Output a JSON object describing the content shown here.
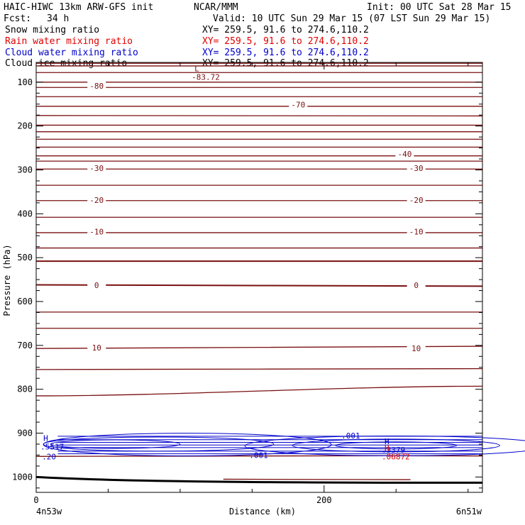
{
  "header": {
    "model": "HAIC-HIWC 13km ARW-GFS init",
    "org": "NCAR/MMM",
    "init": "Init: 00 UTC Sat 28 Mar 15",
    "fcst_label": "Fcst:",
    "fcst_value": "34 h",
    "valid": "Valid: 10 UTC Sun 29 Mar 15 (07 LST Sun 29 Mar 15)"
  },
  "legend": [
    {
      "name": "Snow mixing ratio",
      "xy": "XY= 259.5, 91.6 to 274.6,110.2",
      "color": "#000000"
    },
    {
      "name": "Rain water mixing ratio",
      "xy": "XY= 259.5, 91.6 to 274.6,110.2",
      "color": "#e00000"
    },
    {
      "name": "Cloud water mixing ratio",
      "xy": "XY= 259.5, 91.6 to 274.6,110.2",
      "color": "#0000cc"
    },
    {
      "name": "Cloud ice mixing ratio",
      "xy": "XY= 259.5, 91.6 to 274.6,110.2",
      "color": "#000000"
    }
  ],
  "chart_data": {
    "type": "contour cross-section",
    "xlabel": "Distance (km)",
    "ylabel": "Pressure (hPa)",
    "x_ticks": [
      0,
      200
    ],
    "y_ticks": [
      100,
      200,
      300,
      400,
      500,
      600,
      700,
      800,
      900,
      1000
    ],
    "xlim": [
      0,
      310
    ],
    "ylim": [
      1035,
      55
    ],
    "endpoints": {
      "left": "4n53w",
      "right": "6n51w"
    },
    "colors": {
      "temperature": "#7a1010",
      "cloud_water": "#0000cc",
      "rain": "#e00000",
      "ground": "#000000"
    },
    "temperature_contours": [
      {
        "value": -85,
        "p_left": 57,
        "p_right": 57
      },
      {
        "value": -85,
        "p_left": 63,
        "p_right": 63
      },
      {
        "value": -85,
        "p_left": 78,
        "p_right": 78
      },
      {
        "value": -80,
        "p_left": 100,
        "p_right": 100
      },
      {
        "value": -80,
        "p_left": 112,
        "p_right": 112
      },
      {
        "value": -75,
        "p_left": 133,
        "p_right": 133
      },
      {
        "value": -70,
        "p_left": 155,
        "p_right": 155
      },
      {
        "value": -65,
        "p_left": 176,
        "p_right": 177
      },
      {
        "value": -60,
        "p_left": 198,
        "p_right": 198
      },
      {
        "value": -55,
        "p_left": 213,
        "p_right": 213
      },
      {
        "value": -50,
        "p_left": 230,
        "p_right": 230
      },
      {
        "value": -45,
        "p_left": 248,
        "p_right": 248
      },
      {
        "value": -40,
        "p_left": 268,
        "p_right": 268
      },
      {
        "value": -35,
        "p_left": 280,
        "p_right": 280
      },
      {
        "value": -30,
        "p_left": 298,
        "p_right": 298
      },
      {
        "value": -25,
        "p_left": 335,
        "p_right": 335
      },
      {
        "value": -20,
        "p_left": 370,
        "p_right": 370
      },
      {
        "value": -15,
        "p_left": 408,
        "p_right": 408
      },
      {
        "value": -10,
        "p_left": 443,
        "p_right": 443
      },
      {
        "value": -5,
        "p_left": 478,
        "p_right": 478
      },
      {
        "value": 0,
        "p_left": 508,
        "p_right": 508
      },
      {
        "value": 0,
        "p_left": 562,
        "p_right": 565
      },
      {
        "value": 5,
        "p_left": 624,
        "p_right": 624
      },
      {
        "value": 10,
        "p_left": 661,
        "p_right": 661
      },
      {
        "value": 10,
        "p_left": 707,
        "p_right": 702
      },
      {
        "value": 15,
        "p_left": 755,
        "p_right": 753
      },
      {
        "value": 20,
        "p_left": 815,
        "p_right": 793
      }
    ],
    "temperature_labels": [
      {
        "text": "-80",
        "x": 42,
        "p": 108
      },
      {
        "text": "-70",
        "x": 182,
        "p": 151
      },
      {
        "text": "-40",
        "x": 256,
        "p": 264
      },
      {
        "text": "-30",
        "x": 42,
        "p": 296
      },
      {
        "text": "-30",
        "x": 264,
        "p": 296
      },
      {
        "text": "-20",
        "x": 42,
        "p": 369
      },
      {
        "text": "-20",
        "x": 264,
        "p": 369
      },
      {
        "text": "-10",
        "x": 42,
        "p": 441
      },
      {
        "text": "-10",
        "x": 264,
        "p": 441
      },
      {
        "text": "0",
        "x": 42,
        "p": 563
      },
      {
        "text": "0",
        "x": 264,
        "p": 563
      },
      {
        "text": "10",
        "x": 42,
        "p": 705
      },
      {
        "text": "10",
        "x": 264,
        "p": 707
      }
    ],
    "extrema": [
      {
        "symbol": "L",
        "value": "-83.72",
        "x": 108,
        "p": 75,
        "color": "#7a1010"
      },
      {
        "symbol": "H",
        "value": ".5517",
        "x": 3,
        "p": 918,
        "color": "#0000cc"
      },
      {
        "symbol": "H",
        "value": ".3379",
        "x": 240,
        "p": 925,
        "color": "#0000cc"
      },
      {
        "symbol": "H",
        "value": ".06872",
        "x": 240,
        "p": 940,
        "color": "#e00000"
      }
    ],
    "cloud_labels": [
      {
        "text": ".001",
        "x": 212,
        "p": 906
      },
      {
        "text": ".001",
        "x": 148,
        "p": 950
      },
      {
        "text": ".20",
        "x": 4,
        "p": 953
      }
    ],
    "ground_p": {
      "left": 1000,
      "right": 1013
    }
  },
  "footer": {
    "left_endpoint": "4n53w",
    "right_endpoint": "6n51w"
  }
}
